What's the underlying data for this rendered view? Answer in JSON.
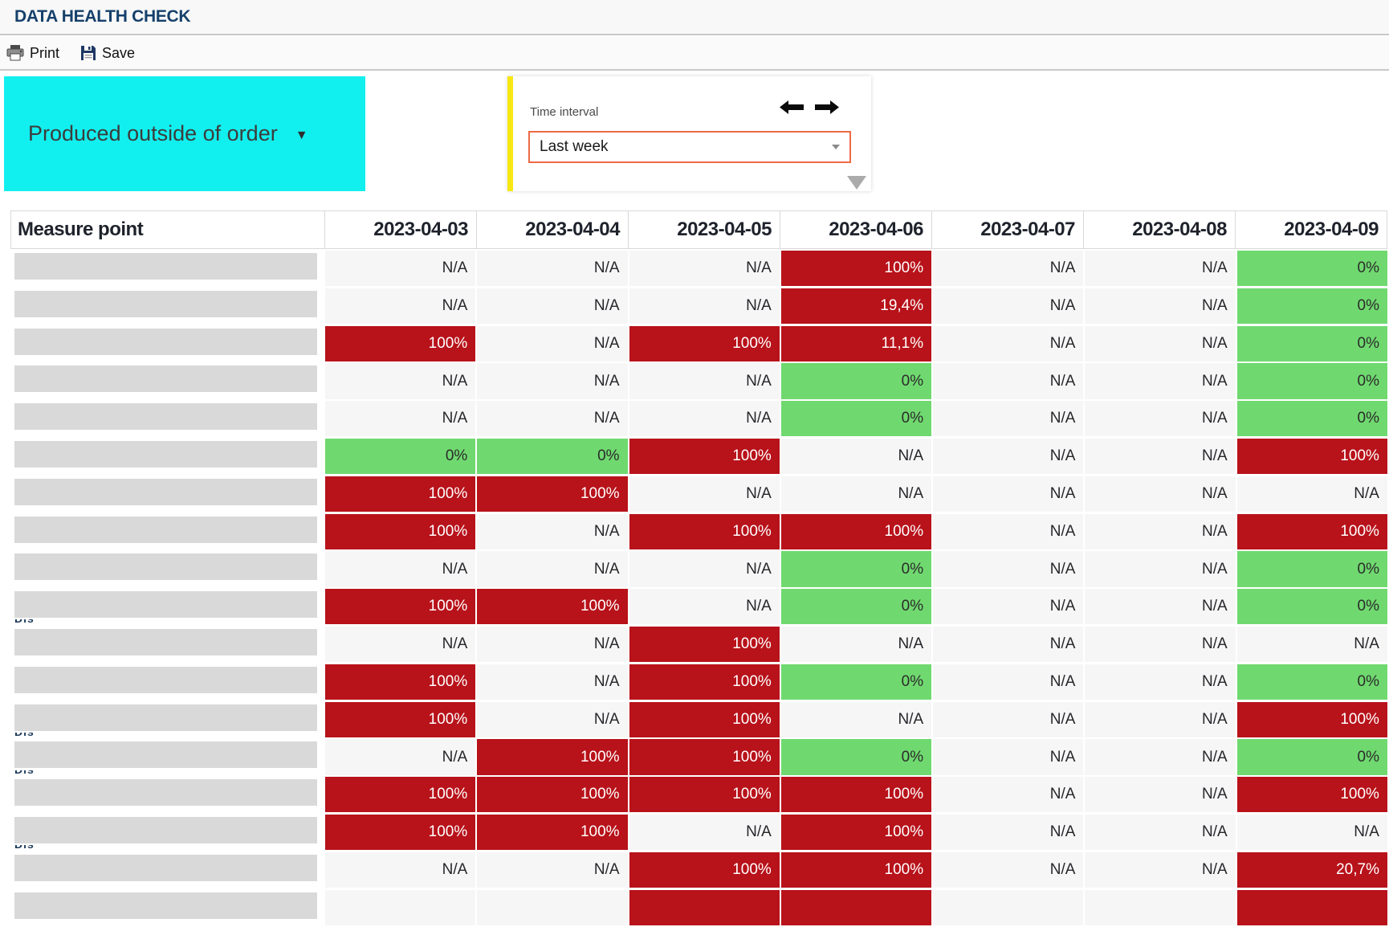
{
  "window": {
    "title": "DATA HEALTH CHECK"
  },
  "toolbar": {
    "print": "Print",
    "save": "Save"
  },
  "filter_dropdown": {
    "label": "Produced outside of order",
    "caret": "▼"
  },
  "time_interval": {
    "label": "Time interval",
    "selected_option": "Last week"
  },
  "colors": {
    "accent_cyan": "#12efef",
    "accent_yellow": "#f7e712",
    "select_border": "#ed6a45",
    "bad_red": "#b8121a",
    "good_green": "#6fd96f",
    "na_background": "#f6f6f6",
    "redaction_gray": "#d9d9d9",
    "title_navy": "#15406b"
  },
  "table": {
    "measure_point_header": "Measure point",
    "date_columns": [
      "2023-04-03",
      "2023-04-04",
      "2023-04-05",
      "2023-04-06",
      "2023-04-07",
      "2023-04-08",
      "2023-04-09"
    ],
    "rows": [
      {
        "values": [
          "N/A",
          "N/A",
          "N/A",
          "100%",
          "N/A",
          "N/A",
          "0%"
        ],
        "redacted_fragment": false
      },
      {
        "values": [
          "N/A",
          "N/A",
          "N/A",
          "19,4%",
          "N/A",
          "N/A",
          "0%"
        ],
        "redacted_fragment": false
      },
      {
        "values": [
          "100%",
          "N/A",
          "100%",
          "11,1%",
          "N/A",
          "N/A",
          "0%"
        ],
        "redacted_fragment": false
      },
      {
        "values": [
          "N/A",
          "N/A",
          "N/A",
          "0%",
          "N/A",
          "N/A",
          "0%"
        ],
        "redacted_fragment": false
      },
      {
        "values": [
          "N/A",
          "N/A",
          "N/A",
          "0%",
          "N/A",
          "N/A",
          "0%"
        ],
        "redacted_fragment": false
      },
      {
        "values": [
          "0%",
          "0%",
          "100%",
          "N/A",
          "N/A",
          "N/A",
          "100%"
        ],
        "redacted_fragment": false
      },
      {
        "values": [
          "100%",
          "100%",
          "N/A",
          "N/A",
          "N/A",
          "N/A",
          "N/A"
        ],
        "redacted_fragment": false
      },
      {
        "values": [
          "100%",
          "N/A",
          "100%",
          "100%",
          "N/A",
          "N/A",
          "100%"
        ],
        "redacted_fragment": false
      },
      {
        "values": [
          "N/A",
          "N/A",
          "N/A",
          "0%",
          "N/A",
          "N/A",
          "0%"
        ],
        "redacted_fragment": false
      },
      {
        "values": [
          "100%",
          "100%",
          "N/A",
          "0%",
          "N/A",
          "N/A",
          "0%"
        ],
        "redacted_fragment": true
      },
      {
        "values": [
          "N/A",
          "N/A",
          "100%",
          "N/A",
          "N/A",
          "N/A",
          "N/A"
        ],
        "redacted_fragment": false
      },
      {
        "values": [
          "100%",
          "N/A",
          "100%",
          "0%",
          "N/A",
          "N/A",
          "0%"
        ],
        "redacted_fragment": false
      },
      {
        "values": [
          "100%",
          "N/A",
          "100%",
          "N/A",
          "N/A",
          "N/A",
          "100%"
        ],
        "redacted_fragment": true
      },
      {
        "values": [
          "N/A",
          "100%",
          "100%",
          "0%",
          "N/A",
          "N/A",
          "0%"
        ],
        "redacted_fragment": true
      },
      {
        "values": [
          "100%",
          "100%",
          "100%",
          "100%",
          "N/A",
          "N/A",
          "100%"
        ],
        "redacted_fragment": false
      },
      {
        "values": [
          "100%",
          "100%",
          "N/A",
          "100%",
          "N/A",
          "N/A",
          "N/A"
        ],
        "redacted_fragment": true
      },
      {
        "values": [
          "N/A",
          "N/A",
          "100%",
          "100%",
          "N/A",
          "N/A",
          "20,7%"
        ],
        "redacted_fragment": false
      }
    ],
    "partial_row_pattern": [
      "na",
      "na",
      "bad",
      "bad",
      "na",
      "na",
      "bad"
    ]
  }
}
